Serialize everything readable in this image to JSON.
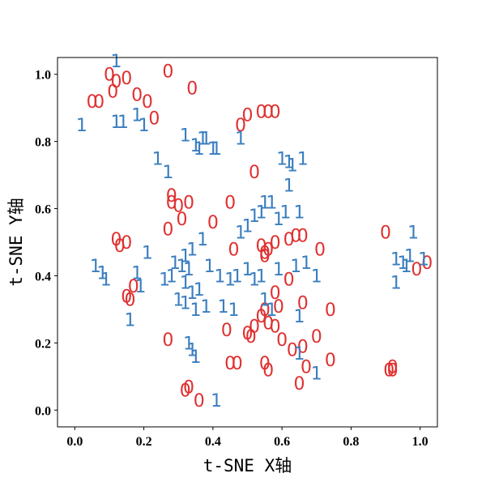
{
  "chart_data": {
    "type": "scatter",
    "title": "",
    "xlabel": "t-SNE X轴",
    "ylabel": "t-SNE Y轴",
    "xlim": [
      -0.05,
      1.05
    ],
    "ylim": [
      -0.05,
      1.05
    ],
    "xticks": [
      "0.0",
      "0.2",
      "0.4",
      "0.6",
      "0.8",
      "1.0"
    ],
    "yticks": [
      "0.0",
      "0.2",
      "0.4",
      "0.6",
      "0.8",
      "1.0"
    ],
    "grid": false,
    "marker_style": "text digits as markers",
    "series": [
      {
        "marker": "0",
        "color": "#e03030",
        "points": [
          [
            0.1,
            1.0
          ],
          [
            0.12,
            0.98
          ],
          [
            0.15,
            0.99
          ],
          [
            0.11,
            0.95
          ],
          [
            0.27,
            1.01
          ],
          [
            0.34,
            0.96
          ],
          [
            0.05,
            0.92
          ],
          [
            0.07,
            0.92
          ],
          [
            0.18,
            0.94
          ],
          [
            0.21,
            0.92
          ],
          [
            0.23,
            0.87
          ],
          [
            0.5,
            0.88
          ],
          [
            0.48,
            0.85
          ],
          [
            0.54,
            0.89
          ],
          [
            0.56,
            0.89
          ],
          [
            0.58,
            0.89
          ],
          [
            0.52,
            0.71
          ],
          [
            0.28,
            0.64
          ],
          [
            0.28,
            0.62
          ],
          [
            0.3,
            0.61
          ],
          [
            0.33,
            0.62
          ],
          [
            0.31,
            0.57
          ],
          [
            0.27,
            0.54
          ],
          [
            0.4,
            0.56
          ],
          [
            0.45,
            0.62
          ],
          [
            0.12,
            0.51
          ],
          [
            0.13,
            0.49
          ],
          [
            0.15,
            0.5
          ],
          [
            0.54,
            0.49
          ],
          [
            0.56,
            0.48
          ],
          [
            0.55,
            0.47
          ],
          [
            0.55,
            0.46
          ],
          [
            0.58,
            0.5
          ],
          [
            0.62,
            0.51
          ],
          [
            0.64,
            0.52
          ],
          [
            0.66,
            0.52
          ],
          [
            0.46,
            0.48
          ],
          [
            0.71,
            0.48
          ],
          [
            0.62,
            0.39
          ],
          [
            0.58,
            0.35
          ],
          [
            0.59,
            0.31
          ],
          [
            0.66,
            0.32
          ],
          [
            0.74,
            0.3
          ],
          [
            0.17,
            0.37
          ],
          [
            0.15,
            0.34
          ],
          [
            0.16,
            0.33
          ],
          [
            0.52,
            0.25
          ],
          [
            0.54,
            0.28
          ],
          [
            0.55,
            0.3
          ],
          [
            0.56,
            0.26
          ],
          [
            0.58,
            0.25
          ],
          [
            0.6,
            0.21
          ],
          [
            0.63,
            0.18
          ],
          [
            0.66,
            0.19
          ],
          [
            0.7,
            0.22
          ],
          [
            0.27,
            0.21
          ],
          [
            0.44,
            0.24
          ],
          [
            0.45,
            0.14
          ],
          [
            0.47,
            0.14
          ],
          [
            0.55,
            0.14
          ],
          [
            0.56,
            0.12
          ],
          [
            0.67,
            0.13
          ],
          [
            0.74,
            0.15
          ],
          [
            0.65,
            0.08
          ],
          [
            0.32,
            0.06
          ],
          [
            0.33,
            0.07
          ],
          [
            0.36,
            0.03
          ],
          [
            0.5,
            0.23
          ],
          [
            0.51,
            0.22
          ],
          [
            0.9,
            0.53
          ],
          [
            0.91,
            0.12
          ],
          [
            0.92,
            0.12
          ],
          [
            0.92,
            0.13
          ],
          [
            0.99,
            0.42
          ],
          [
            1.02,
            0.44
          ]
        ]
      },
      {
        "marker": "1",
        "color": "#3a7ebf",
        "points": [
          [
            0.12,
            1.04
          ],
          [
            0.02,
            0.85
          ],
          [
            0.12,
            0.86
          ],
          [
            0.14,
            0.86
          ],
          [
            0.18,
            0.88
          ],
          [
            0.2,
            0.85
          ],
          [
            0.32,
            0.82
          ],
          [
            0.35,
            0.79
          ],
          [
            0.36,
            0.78
          ],
          [
            0.37,
            0.81
          ],
          [
            0.38,
            0.81
          ],
          [
            0.4,
            0.78
          ],
          [
            0.41,
            0.78
          ],
          [
            0.48,
            0.81
          ],
          [
            0.24,
            0.75
          ],
          [
            0.27,
            0.71
          ],
          [
            0.6,
            0.75
          ],
          [
            0.62,
            0.74
          ],
          [
            0.63,
            0.73
          ],
          [
            0.66,
            0.75
          ],
          [
            0.62,
            0.67
          ],
          [
            0.52,
            0.58
          ],
          [
            0.54,
            0.59
          ],
          [
            0.55,
            0.62
          ],
          [
            0.57,
            0.62
          ],
          [
            0.59,
            0.57
          ],
          [
            0.61,
            0.59
          ],
          [
            0.65,
            0.59
          ],
          [
            0.5,
            0.55
          ],
          [
            0.48,
            0.53
          ],
          [
            0.37,
            0.51
          ],
          [
            0.34,
            0.48
          ],
          [
            0.32,
            0.46
          ],
          [
            0.21,
            0.47
          ],
          [
            0.06,
            0.43
          ],
          [
            0.08,
            0.41
          ],
          [
            0.09,
            0.39
          ],
          [
            0.18,
            0.41
          ],
          [
            0.19,
            0.37
          ],
          [
            0.29,
            0.44
          ],
          [
            0.31,
            0.43
          ],
          [
            0.33,
            0.42
          ],
          [
            0.28,
            0.4
          ],
          [
            0.26,
            0.39
          ],
          [
            0.32,
            0.38
          ],
          [
            0.34,
            0.35
          ],
          [
            0.36,
            0.36
          ],
          [
            0.39,
            0.43
          ],
          [
            0.42,
            0.4
          ],
          [
            0.45,
            0.39
          ],
          [
            0.47,
            0.4
          ],
          [
            0.5,
            0.42
          ],
          [
            0.52,
            0.39
          ],
          [
            0.54,
            0.4
          ],
          [
            0.59,
            0.42
          ],
          [
            0.64,
            0.43
          ],
          [
            0.67,
            0.44
          ],
          [
            0.7,
            0.4
          ],
          [
            0.3,
            0.33
          ],
          [
            0.32,
            0.32
          ],
          [
            0.35,
            0.3
          ],
          [
            0.38,
            0.31
          ],
          [
            0.43,
            0.31
          ],
          [
            0.46,
            0.3
          ],
          [
            0.16,
            0.27
          ],
          [
            0.55,
            0.33
          ],
          [
            0.57,
            0.3
          ],
          [
            0.65,
            0.28
          ],
          [
            0.33,
            0.2
          ],
          [
            0.34,
            0.18
          ],
          [
            0.35,
            0.16
          ],
          [
            0.65,
            0.17
          ],
          [
            0.7,
            0.11
          ],
          [
            0.41,
            0.03
          ],
          [
            0.93,
            0.45
          ],
          [
            0.95,
            0.44
          ],
          [
            0.96,
            0.43
          ],
          [
            0.98,
            0.53
          ],
          [
            0.97,
            0.46
          ],
          [
            1.01,
            0.45
          ],
          [
            0.93,
            0.38
          ]
        ]
      }
    ]
  }
}
